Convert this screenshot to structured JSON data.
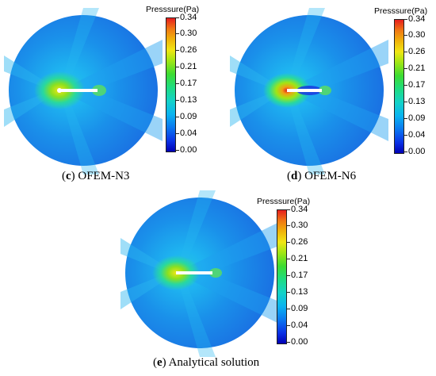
{
  "colorbar": {
    "title": "Presssure(Pa)",
    "ticks": [
      "0.34",
      "0.30",
      "0.26",
      "0.21",
      "0.17",
      "0.13",
      "0.09",
      "0.04",
      "0.00"
    ]
  },
  "panels": [
    {
      "letter": "c",
      "label": " OFEM-N3"
    },
    {
      "letter": "d",
      "label": " OFEM-N6"
    },
    {
      "letter": "e",
      "label": " Analytical solution"
    }
  ],
  "colors": {
    "field_base": "#2a9ef0",
    "field_dark": "#1a6fe8",
    "high": "#e02020",
    "mid": "#3cdc32"
  }
}
